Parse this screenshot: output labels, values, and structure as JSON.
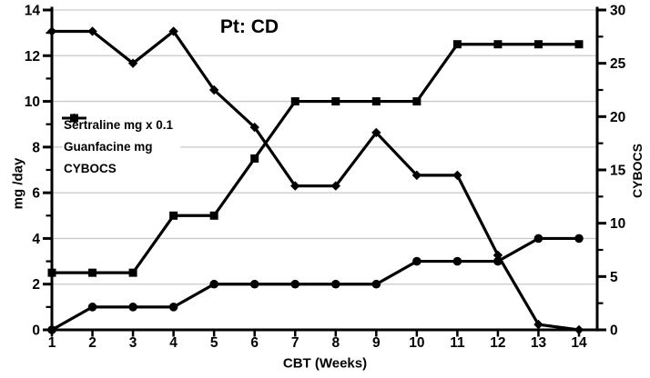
{
  "chart_data": {
    "type": "line",
    "title": "Pt: CD",
    "xlabel": "CBT (Weeks)",
    "ylabel_left": "mg /day",
    "ylabel_right": "CYBOCS",
    "x": [
      1,
      2,
      3,
      4,
      5,
      6,
      7,
      8,
      9,
      10,
      11,
      12,
      13,
      14
    ],
    "left_axis": {
      "min": 0,
      "max": 14,
      "major_ticks": [
        0,
        2,
        4,
        6,
        8,
        10,
        12,
        14
      ],
      "minor_every": 1
    },
    "right_axis": {
      "min": 0,
      "max": 30,
      "major_ticks": [
        0,
        5,
        10,
        15,
        20,
        25,
        30
      ],
      "minor_every": 2.5
    },
    "grid": "horizontal-major",
    "legend_position": "upper-left-inside",
    "series": [
      {
        "name": "Sertraline mg x 0.1",
        "axis": "left",
        "marker": "square",
        "values": [
          2.5,
          2.5,
          2.5,
          5,
          5,
          7.5,
          10,
          10,
          10,
          10,
          12.5,
          12.5,
          12.5,
          12.5
        ]
      },
      {
        "name": "Guanfacine mg",
        "axis": "left",
        "marker": "circle",
        "values": [
          0,
          1,
          1,
          1,
          2,
          2,
          2,
          2,
          2,
          3,
          3,
          3,
          4,
          4
        ]
      },
      {
        "name": "CYBOCS",
        "axis": "right",
        "marker": "diamond",
        "values": [
          28,
          28,
          25,
          28,
          22.5,
          19,
          13.5,
          13.5,
          18.5,
          14.5,
          14.5,
          7,
          0.5,
          0
        ]
      }
    ],
    "colors": {
      "line": "#000000",
      "grid": "#c9c9c9",
      "background": "#ffffff",
      "text": "#000000"
    }
  }
}
